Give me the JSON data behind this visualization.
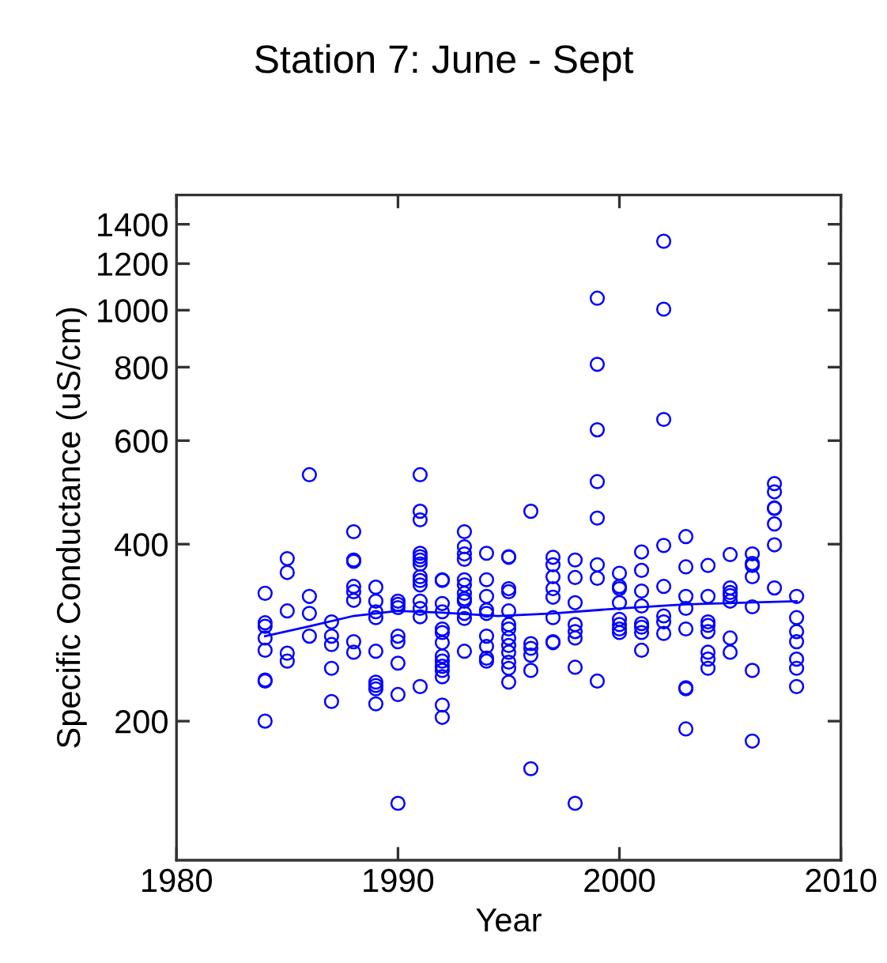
{
  "chart_data": {
    "type": "scatter",
    "title": "Station 7: June - Sept",
    "xlabel": "Year",
    "ylabel": "Specific Conductance (uS/cm)",
    "xlim": [
      1980,
      2010
    ],
    "xticks": [
      1980,
      1990,
      2000,
      2010
    ],
    "ylim": [
      116,
      1570
    ],
    "yticks": [
      200,
      400,
      600,
      800,
      1000,
      1200,
      1400
    ],
    "log": "y",
    "grid": false,
    "legend": false,
    "series": [
      {
        "color": "#0000ff",
        "marker": "circle",
        "x": [
          1984,
          1984,
          1984,
          1984,
          1984,
          1984,
          1984,
          1984,
          1985,
          1985,
          1985,
          1985,
          1985,
          1986,
          1986,
          1986,
          1986,
          1987,
          1987,
          1987,
          1987,
          1987,
          1988,
          1988,
          1988,
          1988,
          1988,
          1988,
          1988,
          1988,
          1989,
          1989,
          1989,
          1989,
          1989,
          1989,
          1989,
          1989,
          1989,
          1990,
          1990,
          1990,
          1990,
          1990,
          1990,
          1990,
          1990,
          1991,
          1991,
          1991,
          1991,
          1991,
          1991,
          1991,
          1991,
          1991,
          1991,
          1991,
          1991,
          1991,
          1991,
          1992,
          1992,
          1992,
          1992,
          1992,
          1992,
          1992,
          1992,
          1992,
          1992,
          1992,
          1992,
          1992,
          1992,
          1993,
          1993,
          1993,
          1993,
          1993,
          1993,
          1993,
          1993,
          1993,
          1993,
          1993,
          1993,
          1994,
          1994,
          1994,
          1994,
          1994,
          1994,
          1994,
          1994,
          1994,
          1995,
          1995,
          1995,
          1995,
          1995,
          1995,
          1995,
          1995,
          1995,
          1995,
          1995,
          1995,
          1995,
          1996,
          1996,
          1996,
          1996,
          1996,
          1996,
          1997,
          1997,
          1997,
          1997,
          1997,
          1997,
          1997,
          1997,
          1998,
          1998,
          1998,
          1998,
          1998,
          1998,
          1998,
          1998,
          1999,
          1999,
          1999,
          1999,
          1999,
          1999,
          1999,
          1999,
          2000,
          2000,
          2000,
          2000,
          2000,
          2000,
          2000,
          2000,
          2001,
          2001,
          2001,
          2001,
          2001,
          2001,
          2001,
          2001,
          2002,
          2002,
          2002,
          2002,
          2002,
          2002,
          2002,
          2002,
          2003,
          2003,
          2003,
          2003,
          2003,
          2003,
          2003,
          2003,
          2004,
          2004,
          2004,
          2004,
          2004,
          2004,
          2004,
          2004,
          2005,
          2005,
          2005,
          2005,
          2005,
          2005,
          2005,
          2006,
          2006,
          2006,
          2006,
          2006,
          2006,
          2006,
          2007,
          2007,
          2007,
          2007,
          2007,
          2007,
          2007,
          2008,
          2008,
          2008,
          2008,
          2008,
          2008,
          2008
        ],
        "values": [
          330,
          294,
          290,
          277,
          264,
          235,
          234,
          200,
          378,
          358,
          308,
          261,
          253,
          525,
          326,
          305,
          279,
          295,
          279,
          270,
          246,
          216,
          420,
          376,
          374,
          339,
          332,
          321,
          273,
          262,
          338,
          320,
          307,
          300,
          263,
          233,
          230,
          227,
          214,
          320,
          316,
          312,
          279,
          273,
          251,
          222,
          145,
          525,
          455,
          440,
          386,
          381,
          376,
          370,
          352,
          347,
          341,
          320,
          311,
          301,
          229,
          348,
          347,
          317,
          307,
          287,
          283,
          272,
          258,
          253,
          248,
          244,
          238,
          213,
          203,
          420,
          396,
          385,
          377,
          348,
          341,
          330,
          323,
          320,
          305,
          299,
          263,
          386,
          348,
          326,
          309,
          305,
          279,
          268,
          256,
          253,
          381,
          380,
          336,
          332,
          308,
          292,
          287,
          277,
          269,
          262,
          252,
          246,
          233,
          455,
          271,
          266,
          259,
          244,
          166,
          380,
          369,
          352,
          336,
          325,
          300,
          273,
          272,
          376,
          351,
          318,
          292,
          284,
          277,
          247,
          145,
          1048,
          809,
          626,
          511,
          443,
          369,
          350,
          234,
          357,
          339,
          336,
          318,
          298,
          292,
          287,
          283,
          388,
          361,
          333,
          314,
          293,
          289,
          283,
          264,
          1310,
          1004,
          652,
          398,
          339,
          302,
          295,
          282,
          412,
          366,
          326,
          311,
          287,
          228,
          227,
          194,
          368,
          326,
          295,
          291,
          284,
          262,
          255,
          246,
          384,
          337,
          331,
          327,
          320,
          277,
          262,
          385,
          371,
          368,
          352,
          313,
          244,
          185,
          507,
          491,
          461,
          460,
          433,
          399,
          337,
          326,
          300,
          284,
          273,
          255,
          246,
          229
        ]
      },
      {
        "type": "line",
        "color": "#0000ff",
        "marker": "none",
        "line_style": "solid",
        "x": [
          1984,
          1986,
          1988,
          1990,
          1992,
          1994.5,
          1997,
          2000,
          2003,
          2008
        ],
        "values": [
          279,
          290,
          302,
          308,
          306,
          302,
          305,
          311,
          316,
          320
        ]
      }
    ]
  }
}
